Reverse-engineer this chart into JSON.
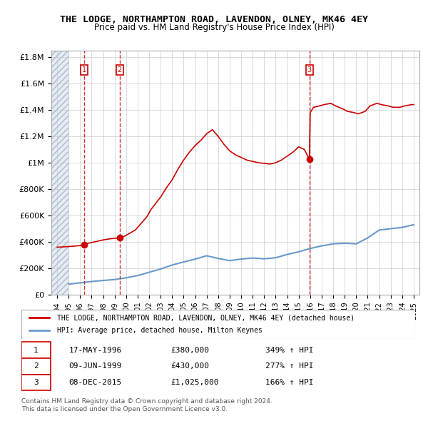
{
  "title": "THE LODGE, NORTHAMPTON ROAD, LAVENDON, OLNEY, MK46 4EY",
  "subtitle": "Price paid vs. HM Land Registry's House Price Index (HPI)",
  "legend_line1": "THE LODGE, NORTHAMPTON ROAD, LAVENDON, OLNEY, MK46 4EY (detached house)",
  "legend_line2": "HPI: Average price, detached house, Milton Keynes",
  "footnote1": "Contains HM Land Registry data © Crown copyright and database right 2024.",
  "footnote2": "This data is licensed under the Open Government Licence v3.0.",
  "xlim": [
    1993.5,
    2025.5
  ],
  "ylim": [
    0,
    1850000
  ],
  "yticks": [
    0,
    200000,
    400000,
    600000,
    800000,
    1000000,
    1200000,
    1400000,
    1600000,
    1800000
  ],
  "ytick_labels": [
    "£0",
    "£200K",
    "£400K",
    "£600K",
    "£800K",
    "£1M",
    "£1.2M",
    "£1.4M",
    "£1.6M",
    "£1.8M"
  ],
  "xticks": [
    1994,
    1995,
    1996,
    1997,
    1998,
    1999,
    2000,
    2001,
    2002,
    2003,
    2004,
    2005,
    2006,
    2007,
    2008,
    2009,
    2010,
    2011,
    2012,
    2013,
    2014,
    2015,
    2016,
    2017,
    2018,
    2019,
    2020,
    2021,
    2022,
    2023,
    2024,
    2025
  ],
  "sales": [
    {
      "label": "1",
      "year": 1996.38,
      "price": 380000,
      "date": "17-MAY-1996",
      "pct": "349%",
      "dir": "↑"
    },
    {
      "label": "2",
      "year": 1999.44,
      "price": 430000,
      "date": "09-JUN-1999",
      "pct": "277%",
      "dir": "↑"
    },
    {
      "label": "3",
      "year": 2015.93,
      "price": 1025000,
      "date": "08-DEC-2015",
      "pct": "166%",
      "dir": "↑"
    }
  ],
  "property_color": "#cc0000",
  "hpi_color": "#6699cc",
  "hatch_color": "#d0d8e8",
  "hatch_end_year": 1995.0,
  "property_line": {
    "x": [
      1994.0,
      1994.5,
      1995.0,
      1995.5,
      1996.0,
      1996.38,
      1996.5,
      1997.0,
      1997.5,
      1998.0,
      1998.5,
      1999.0,
      1999.44,
      1999.8,
      2000.2,
      2000.8,
      2001.2,
      2001.8,
      2002.2,
      2003.0,
      2003.5,
      2004.0,
      2004.5,
      2005.0,
      2005.5,
      2006.0,
      2006.5,
      2007.0,
      2007.5,
      2008.0,
      2008.5,
      2009.0,
      2009.5,
      2010.0,
      2010.5,
      2011.0,
      2011.5,
      2012.0,
      2012.5,
      2013.0,
      2013.5,
      2014.0,
      2014.5,
      2015.0,
      2015.5,
      2015.93,
      2016.0,
      2016.3,
      2016.8,
      2017.2,
      2017.8,
      2018.2,
      2018.8,
      2019.2,
      2019.8,
      2020.2,
      2020.8,
      2021.2,
      2021.8,
      2022.2,
      2022.8,
      2023.2,
      2023.8,
      2024.2,
      2024.8,
      2025.0
    ],
    "y": [
      360000,
      362000,
      365000,
      368000,
      372000,
      380000,
      385000,
      395000,
      405000,
      415000,
      422000,
      428000,
      430000,
      440000,
      460000,
      490000,
      530000,
      590000,
      650000,
      740000,
      810000,
      870000,
      950000,
      1020000,
      1080000,
      1130000,
      1170000,
      1220000,
      1250000,
      1200000,
      1140000,
      1090000,
      1060000,
      1040000,
      1020000,
      1010000,
      1000000,
      995000,
      990000,
      1000000,
      1020000,
      1050000,
      1080000,
      1120000,
      1100000,
      1025000,
      1380000,
      1420000,
      1430000,
      1440000,
      1450000,
      1430000,
      1410000,
      1390000,
      1380000,
      1370000,
      1390000,
      1430000,
      1450000,
      1440000,
      1430000,
      1420000,
      1420000,
      1430000,
      1440000,
      1440000
    ]
  },
  "hpi_line": {
    "x": [
      1995.0,
      1996.0,
      1997.0,
      1998.0,
      1999.0,
      2000.0,
      2001.0,
      2002.0,
      2003.0,
      2004.0,
      2005.0,
      2006.0,
      2007.0,
      2008.0,
      2009.0,
      2010.0,
      2011.0,
      2012.0,
      2013.0,
      2014.0,
      2015.0,
      2016.0,
      2017.0,
      2018.0,
      2019.0,
      2020.0,
      2021.0,
      2022.0,
      2023.0,
      2024.0,
      2025.0
    ],
    "y": [
      80000,
      90000,
      100000,
      108000,
      115000,
      128000,
      145000,
      170000,
      195000,
      225000,
      248000,
      270000,
      295000,
      275000,
      258000,
      270000,
      278000,
      272000,
      280000,
      305000,
      325000,
      350000,
      370000,
      385000,
      390000,
      385000,
      430000,
      490000,
      500000,
      510000,
      530000
    ]
  }
}
